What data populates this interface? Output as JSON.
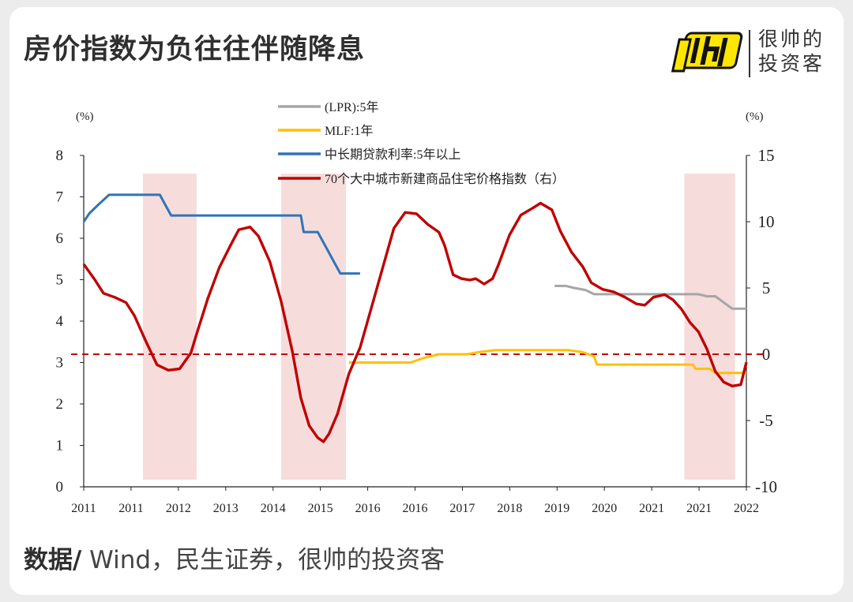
{
  "title": "房价指数为负往往伴随降息",
  "brand": {
    "name_line1": "很帅的",
    "name_line2": "投资客",
    "logo_icon": "brand-logo-icon"
  },
  "footer": {
    "label": "数据/",
    "sources": " Wind，民生证券，很帅的投资客"
  },
  "colors": {
    "lpr": "#a6a6a6",
    "mlf": "#ffc000",
    "loan": "#2e75b6",
    "hpi": "#c00000",
    "shade": "#f7dcdc",
    "zero": "#c00000"
  },
  "chart_data": {
    "type": "line",
    "title": "房价指数为负往往伴随降息",
    "left_axis": {
      "unit": "(%)",
      "ylim": [
        0,
        8
      ],
      "ticks": [
        0,
        1,
        2,
        3,
        4,
        5,
        6,
        7,
        8
      ]
    },
    "right_axis": {
      "unit": "(%)",
      "ylim": [
        -10,
        15
      ],
      "ticks": [
        -10,
        -5,
        0,
        5,
        10,
        15
      ]
    },
    "x_range": [
      2011.0,
      2022.75
    ],
    "x_tick_labels": [
      "2011",
      "2011",
      "2012",
      "2013",
      "2014",
      "2015",
      "2016",
      "2016",
      "2017",
      "2018",
      "2019",
      "2020",
      "2021",
      "2021",
      "2022"
    ],
    "zero_line_right": 0,
    "shaded_periods": [
      [
        2012.05,
        2013.0
      ],
      [
        2014.5,
        2015.65
      ],
      [
        2021.65,
        2022.55
      ]
    ],
    "series": [
      {
        "name": "(LPR):5年",
        "axis": "left",
        "color": "#a6a6a6",
        "points": [
          [
            2019.35,
            4.85
          ],
          [
            2019.55,
            4.85
          ],
          [
            2019.7,
            4.8
          ],
          [
            2019.9,
            4.75
          ],
          [
            2020.05,
            4.65
          ],
          [
            2020.3,
            4.65
          ],
          [
            2020.5,
            4.65
          ],
          [
            2021.0,
            4.65
          ],
          [
            2021.5,
            4.65
          ],
          [
            2021.9,
            4.65
          ],
          [
            2022.05,
            4.6
          ],
          [
            2022.2,
            4.6
          ],
          [
            2022.35,
            4.45
          ],
          [
            2022.5,
            4.3
          ],
          [
            2022.75,
            4.3
          ]
        ]
      },
      {
        "name": "MLF:1年",
        "axis": "left",
        "color": "#ffc000",
        "points": [
          [
            2015.7,
            3.0
          ],
          [
            2016.8,
            3.0
          ],
          [
            2017.0,
            3.1
          ],
          [
            2017.3,
            3.2
          ],
          [
            2017.8,
            3.2
          ],
          [
            2018.0,
            3.25
          ],
          [
            2018.3,
            3.3
          ],
          [
            2019.0,
            3.3
          ],
          [
            2019.6,
            3.3
          ],
          [
            2019.85,
            3.25
          ],
          [
            2020.05,
            3.15
          ],
          [
            2020.1,
            2.95
          ],
          [
            2020.5,
            2.95
          ],
          [
            2021.0,
            2.95
          ],
          [
            2021.8,
            2.95
          ],
          [
            2021.85,
            2.85
          ],
          [
            2022.1,
            2.85
          ],
          [
            2022.2,
            2.75
          ],
          [
            2022.75,
            2.75
          ]
        ]
      },
      {
        "name": "中长期贷款利率:5年以上",
        "axis": "left",
        "color": "#2e75b6",
        "points": [
          [
            2011.0,
            6.4
          ],
          [
            2011.1,
            6.6
          ],
          [
            2011.25,
            6.8
          ],
          [
            2011.45,
            7.05
          ],
          [
            2011.6,
            7.05
          ],
          [
            2012.35,
            7.05
          ],
          [
            2012.45,
            6.8
          ],
          [
            2012.55,
            6.55
          ],
          [
            2013.0,
            6.55
          ],
          [
            2014.0,
            6.55
          ],
          [
            2014.85,
            6.55
          ],
          [
            2014.9,
            6.15
          ],
          [
            2015.15,
            6.15
          ],
          [
            2015.25,
            5.9
          ],
          [
            2015.35,
            5.65
          ],
          [
            2015.45,
            5.4
          ],
          [
            2015.55,
            5.15
          ],
          [
            2015.9,
            5.15
          ]
        ]
      },
      {
        "name": "70个大中城市新建商品住宅价格指数（右）",
        "axis": "right",
        "color": "#c00000",
        "points": [
          [
            2011.0,
            6.8
          ],
          [
            2011.2,
            5.6
          ],
          [
            2011.35,
            4.6
          ],
          [
            2011.55,
            4.3
          ],
          [
            2011.75,
            3.9
          ],
          [
            2011.9,
            2.9
          ],
          [
            2012.1,
            1.0
          ],
          [
            2012.3,
            -0.8
          ],
          [
            2012.5,
            -1.2
          ],
          [
            2012.7,
            -1.1
          ],
          [
            2012.9,
            0.1
          ],
          [
            2013.0,
            1.5
          ],
          [
            2013.2,
            4.2
          ],
          [
            2013.4,
            6.5
          ],
          [
            2013.6,
            8.2
          ],
          [
            2013.75,
            9.4
          ],
          [
            2013.95,
            9.6
          ],
          [
            2014.1,
            8.9
          ],
          [
            2014.3,
            7.0
          ],
          [
            2014.5,
            4.0
          ],
          [
            2014.7,
            0.2
          ],
          [
            2014.85,
            -3.3
          ],
          [
            2015.0,
            -5.4
          ],
          [
            2015.15,
            -6.3
          ],
          [
            2015.25,
            -6.6
          ],
          [
            2015.35,
            -6.0
          ],
          [
            2015.5,
            -4.5
          ],
          [
            2015.7,
            -1.5
          ],
          [
            2015.9,
            0.5
          ],
          [
            2016.1,
            3.5
          ],
          [
            2016.3,
            6.5
          ],
          [
            2016.5,
            9.5
          ],
          [
            2016.7,
            10.7
          ],
          [
            2016.9,
            10.6
          ],
          [
            2017.1,
            9.8
          ],
          [
            2017.3,
            9.2
          ],
          [
            2017.4,
            8.2
          ],
          [
            2017.55,
            6.0
          ],
          [
            2017.7,
            5.7
          ],
          [
            2017.85,
            5.6
          ],
          [
            2017.95,
            5.7
          ],
          [
            2018.1,
            5.3
          ],
          [
            2018.25,
            5.7
          ],
          [
            2018.35,
            6.7
          ],
          [
            2018.55,
            9.0
          ],
          [
            2018.75,
            10.5
          ],
          [
            2018.95,
            11.0
          ],
          [
            2019.1,
            11.4
          ],
          [
            2019.3,
            10.9
          ],
          [
            2019.45,
            9.3
          ],
          [
            2019.65,
            7.7
          ],
          [
            2019.85,
            6.6
          ],
          [
            2020.0,
            5.4
          ],
          [
            2020.2,
            4.9
          ],
          [
            2020.4,
            4.7
          ],
          [
            2020.6,
            4.3
          ],
          [
            2020.8,
            3.8
          ],
          [
            2020.95,
            3.7
          ],
          [
            2021.1,
            4.3
          ],
          [
            2021.3,
            4.5
          ],
          [
            2021.45,
            4.1
          ],
          [
            2021.6,
            3.4
          ],
          [
            2021.75,
            2.4
          ],
          [
            2021.9,
            1.7
          ],
          [
            2022.05,
            0.4
          ],
          [
            2022.2,
            -1.3
          ],
          [
            2022.35,
            -2.1
          ],
          [
            2022.5,
            -2.4
          ],
          [
            2022.65,
            -2.3
          ],
          [
            2022.75,
            -0.6
          ]
        ]
      }
    ]
  }
}
